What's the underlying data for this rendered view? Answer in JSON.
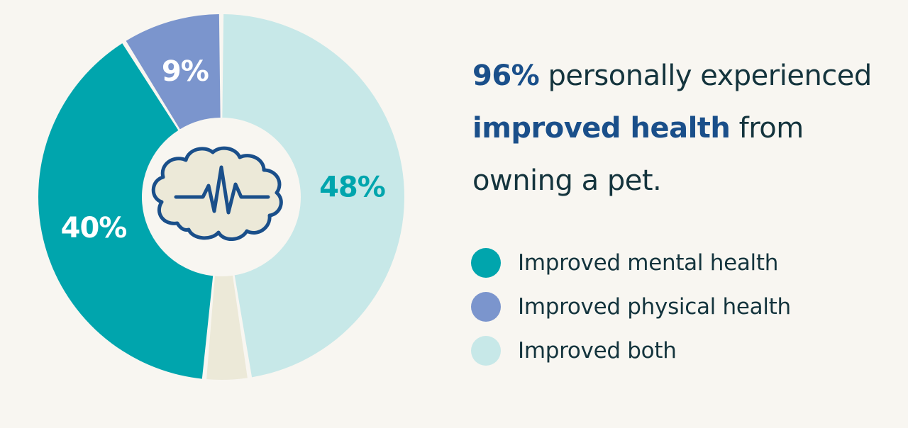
{
  "headline": {
    "pct": "96%",
    "text1": "personally experienced",
    "highlight": "improved health",
    "text2": "from",
    "text3": "owning a pet."
  },
  "colors": {
    "mental": "#00a5ad",
    "physical": "#7b95cd",
    "both": "#c7e8e8",
    "remainder": "#ece9d8",
    "icon_stroke": "#1a4f8a",
    "icon_fill": "#ece9d8",
    "headline_text": "#14343d",
    "headline_highlight": "#1a4f8a"
  },
  "chart_data": {
    "type": "pie",
    "donut": true,
    "center_icon": "cloud-heartbeat-icon",
    "slices": [
      {
        "name": "Improved both",
        "value": 48,
        "label": "48%",
        "color": "#c7e8e8",
        "label_color": "#00a5ad"
      },
      {
        "name": "",
        "value": 4,
        "label": "",
        "color": "#ece9d8",
        "label_color": ""
      },
      {
        "name": "Improved mental health",
        "value": 40,
        "label": "40%",
        "color": "#00a5ad",
        "label_color": "#ffffff"
      },
      {
        "name": "Improved physical health",
        "value": 9,
        "label": "9%",
        "color": "#7b95cd",
        "label_color": "#ffffff"
      }
    ],
    "legend": [
      {
        "label": "Improved mental health",
        "color": "#00a5ad"
      },
      {
        "label": "Improved physical health",
        "color": "#7b95cd"
      },
      {
        "label": "Improved both",
        "color": "#c7e8e8"
      }
    ],
    "legend_position": "right"
  }
}
